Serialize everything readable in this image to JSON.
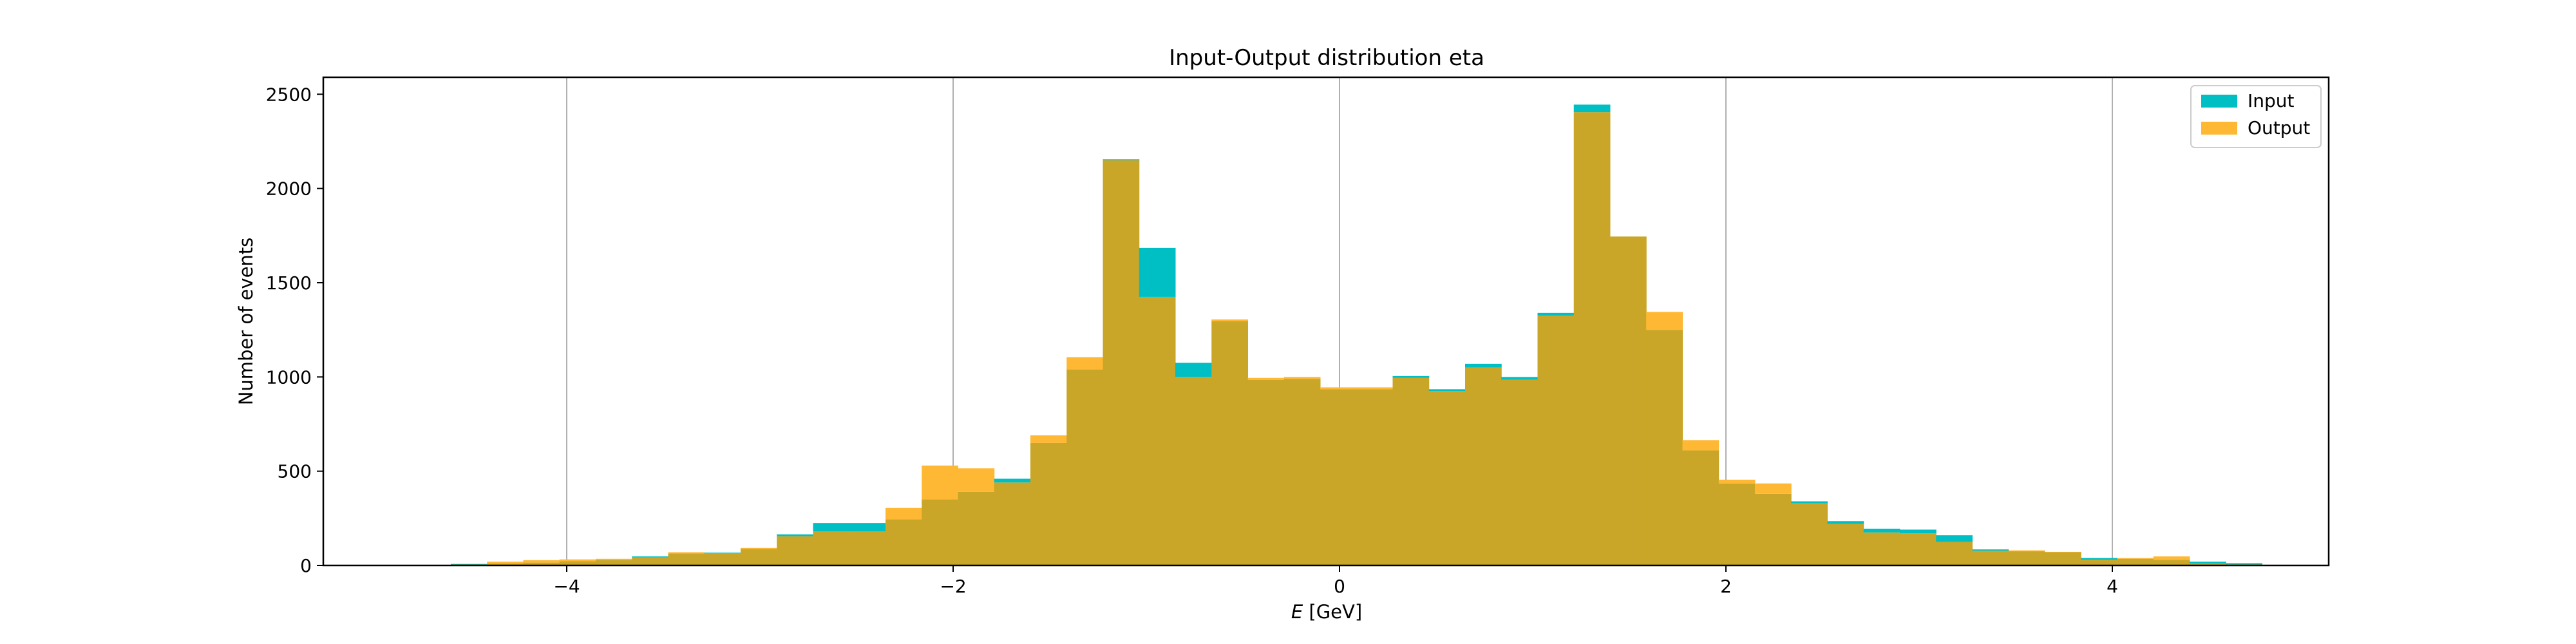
{
  "chart_data": {
    "type": "histogram",
    "title": "Input-Output distribution eta",
    "xlabel_var": "E",
    "xlabel_unit": " [GeV]",
    "ylabel": "Number of events",
    "xlim": [
      -5.26,
      5.12
    ],
    "ylim": [
      0,
      2590
    ],
    "grid": "vertical",
    "legend_position": "top-right",
    "x_ticks": [
      -4,
      -2,
      0,
      2,
      4
    ],
    "x_tick_labels": [
      "−4",
      "−2",
      "0",
      "2",
      "4"
    ],
    "y_ticks": [
      0,
      500,
      1000,
      1500,
      2000,
      2500
    ],
    "y_tick_labels": [
      "0",
      "500",
      "1000",
      "1500",
      "2000",
      "2500"
    ],
    "bins": {
      "start": -4.6,
      "width": 0.1875,
      "count": 50
    },
    "overlap_color": "#c9a627",
    "series": [
      {
        "name": "Input",
        "color": "#00bfc4",
        "values": [
          8,
          11,
          15,
          22,
          30,
          48,
          64,
          68,
          88,
          165,
          225,
          225,
          245,
          350,
          390,
          460,
          650,
          1040,
          2155,
          1685,
          1075,
          1295,
          985,
          990,
          935,
          935,
          1005,
          935,
          1070,
          1000,
          1340,
          2445,
          1745,
          1250,
          610,
          435,
          380,
          340,
          235,
          195,
          190,
          160,
          85,
          75,
          70,
          40,
          35,
          30,
          20,
          12
        ]
      },
      {
        "name": "Output",
        "color": "#ffb833",
        "values": [
          5,
          20,
          28,
          32,
          35,
          42,
          70,
          65,
          93,
          155,
          180,
          180,
          305,
          530,
          515,
          440,
          690,
          1105,
          2150,
          1425,
          1000,
          1305,
          995,
          1000,
          945,
          945,
          995,
          925,
          1050,
          985,
          1325,
          2405,
          1745,
          1345,
          665,
          455,
          435,
          330,
          220,
          175,
          170,
          125,
          78,
          80,
          72,
          30,
          40,
          48,
          10,
          5
        ]
      }
    ]
  }
}
